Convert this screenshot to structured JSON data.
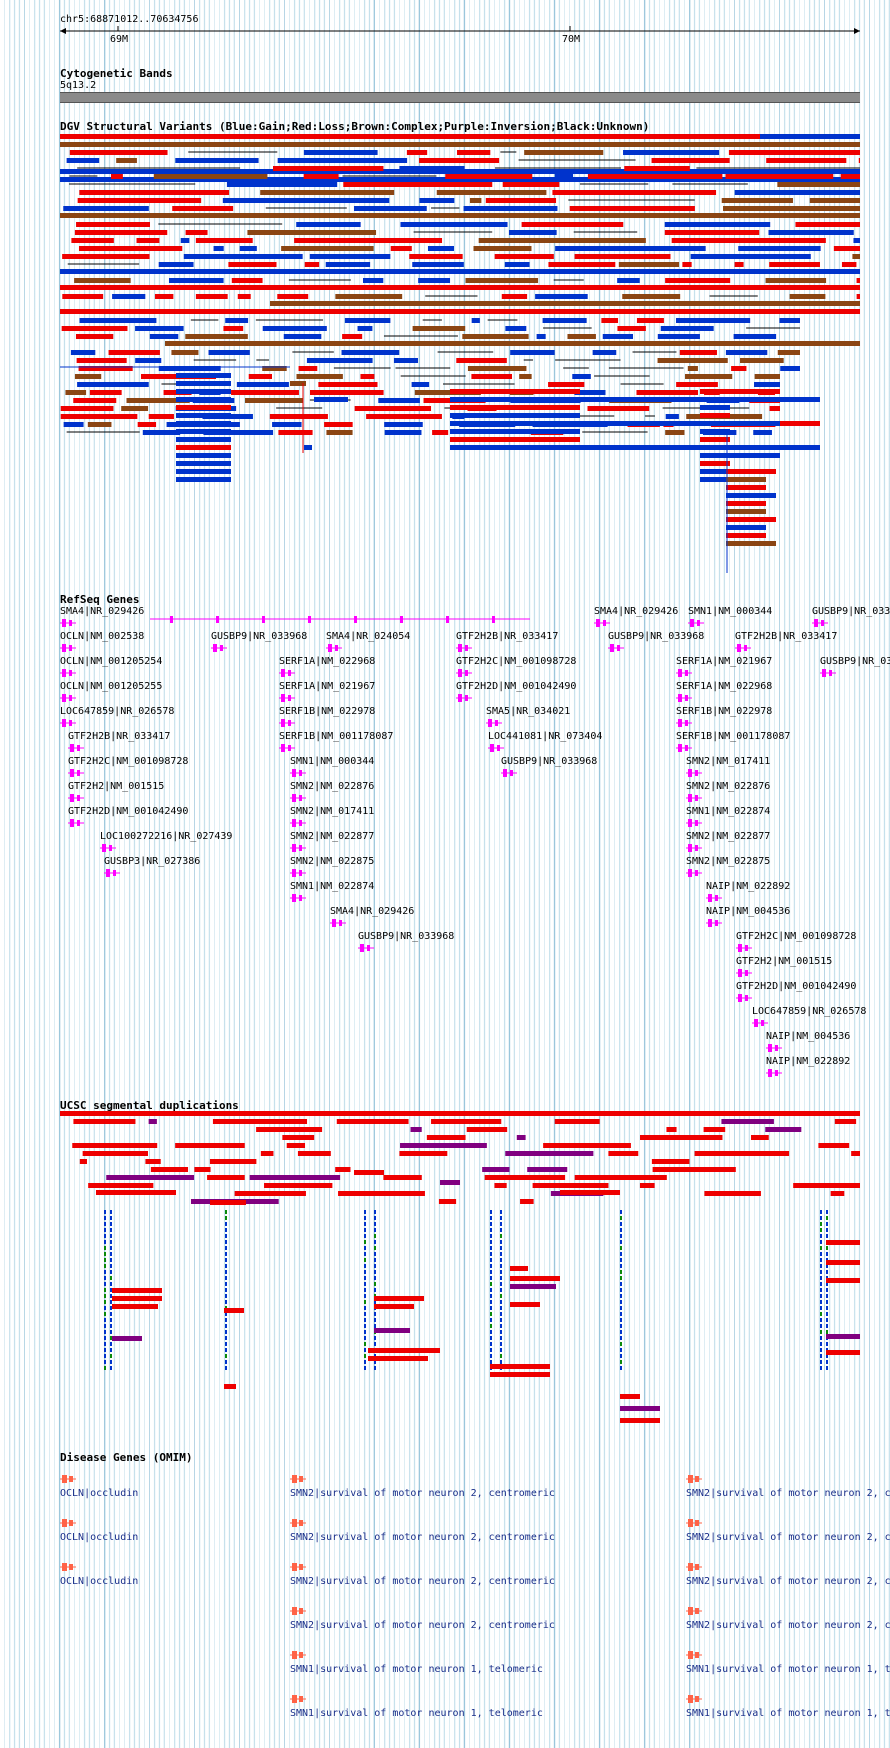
{
  "position": "chr5:68871012..70634756",
  "ruler": {
    "ticks": [
      {
        "label": "69M"
      },
      {
        "label": "70M"
      }
    ]
  },
  "tracks": {
    "cytoband": {
      "title": "Cytogenetic Bands",
      "band": "5q13.2"
    },
    "dgv": {
      "title": "DGV Structural Variants (Blue:Gain;Red:Loss;Brown:Complex;Purple:Inversion;Black:Unknown)",
      "colors": {
        "gain": "#0033cc",
        "loss": "#ee0000",
        "complex": "#8b4513",
        "inversion": "#800080",
        "unknown": "#000000"
      }
    },
    "refseq": {
      "title": "RefSeq Genes",
      "color": "#ff00ff",
      "labels": [
        "SMA4|NR_029426",
        "OCLN|NM_002538",
        "GUSBP9|NR_033968",
        "SMA4|NR_024054",
        "GTF2H2B|NR_033417",
        "SMA4|NR_029426",
        "SMN1|NM_000344",
        "GUSBP9|NR_033",
        "GUSBP9|NR_033968",
        "GTF2H2B|NR_033417",
        "OCLN|NM_001205254",
        "SERF1A|NM_022968",
        "GTF2H2C|NM_001098728",
        "SERF1A|NM_021967",
        "GUSBP9|NR_03",
        "OCLN|NM_001205255",
        "SERF1A|NM_021967",
        "GTF2H2D|NM_001042490",
        "SERF1A|NM_022968",
        "LOC647859|NR_026578",
        "SERF1B|NM_022978",
        "SMA5|NR_034021",
        "SERF1B|NM_022978",
        "GTF2H2B|NR_033417",
        "SERF1B|NM_001178087",
        "LOC441081|NR_073404",
        "SERF1B|NM_001178087",
        "GTF2H2C|NM_001098728",
        "SMN1|NM_000344",
        "GUSBP9|NR_033968",
        "SMN2|NM_017411",
        "GTF2H2|NM_001515",
        "SMN2|NM_022876",
        "SMN2|NM_022876",
        "GTF2H2D|NM_001042490",
        "SMN2|NM_017411",
        "SMN1|NM_022874",
        "LOC100272216|NR_027439",
        "SMN2|NM_022877",
        "SMN2|NM_022877",
        "GUSBP3|NR_027386",
        "SMN2|NM_022875",
        "SMN2|NM_022875",
        "SMN1|NM_022874",
        "NAIP|NM_022892",
        "SMA4|NR_029426",
        "NAIP|NM_004536",
        "GUSBP9|NR_033968",
        "GTF2H2C|NM_001098728",
        "GTF2H2|NM_001515",
        "GTF2H2D|NM_001042490",
        "LOC647859|NR_026578",
        "NAIP|NM_004536",
        "NAIP|NM_022892"
      ]
    },
    "segdup": {
      "title": "UCSC segmental duplications"
    },
    "omim": {
      "title": "Disease Genes (OMIM)",
      "color": "#ff6347",
      "labels": [
        "OCLN|occludin",
        "SMN2|survival of motor neuron 2, centromeric",
        "SMN2|survival of motor neuron 2, c",
        "OCLN|occludin",
        "SMN2|survival of motor neuron 2, centromeric",
        "SMN2|survival of motor neuron 2, c",
        "OCLN|occludin",
        "SMN2|survival of motor neuron 2, centromeric",
        "SMN2|survival of motor neuron 2, c",
        "SMN2|survival of motor neuron 2, centromeric",
        "SMN2|survival of motor neuron 2, c",
        "SMN1|survival of motor neuron 1, telomeric",
        "SMN1|survival of motor neuron 1, t",
        "SMN1|survival of motor neuron 1, telomeric",
        "SMN1|survival of motor neuron 1, t"
      ]
    }
  }
}
